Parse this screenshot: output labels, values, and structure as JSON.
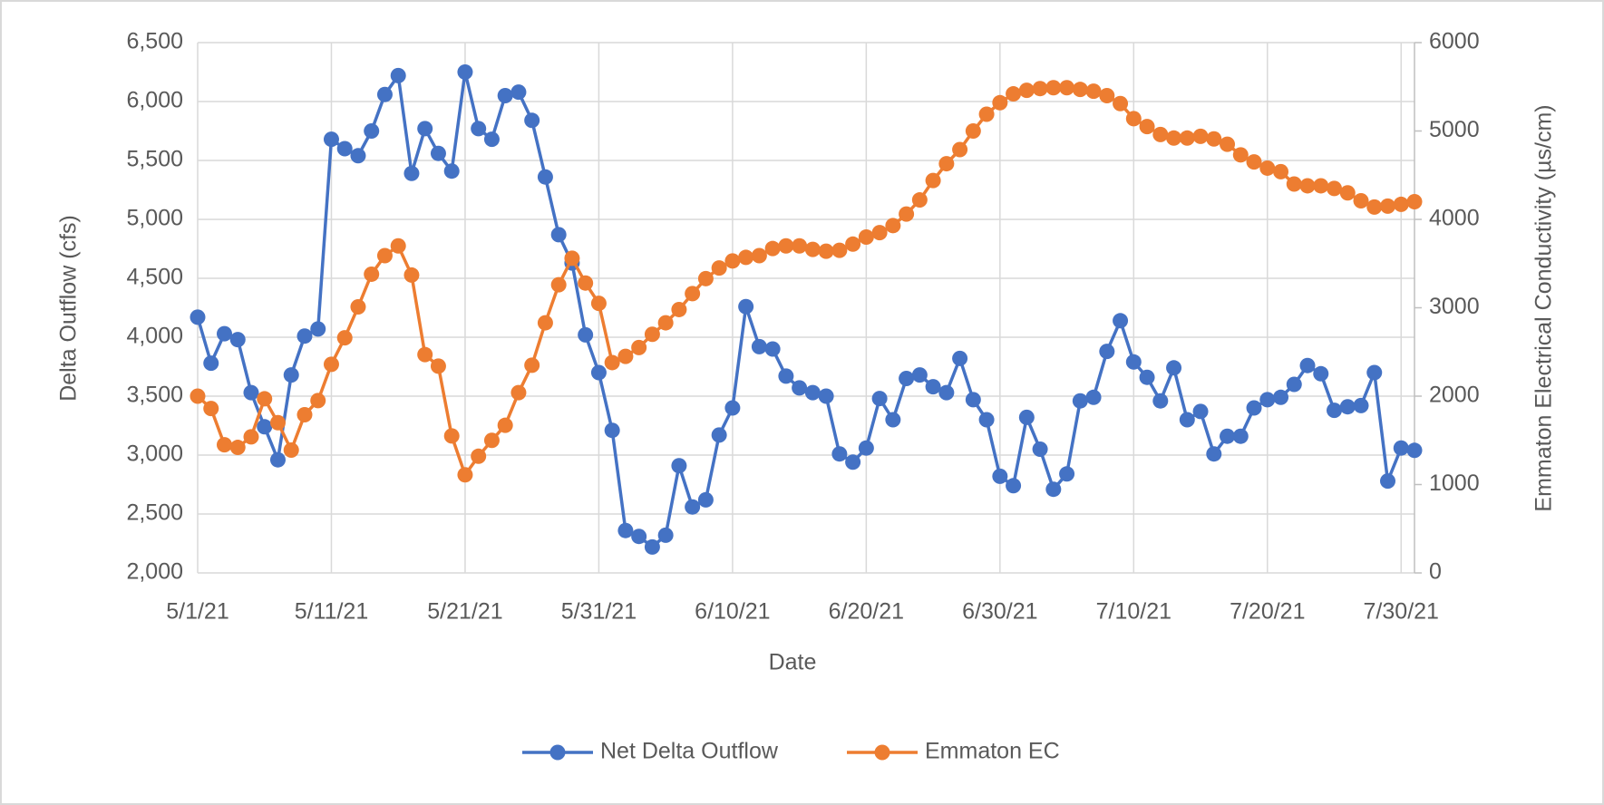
{
  "chart_data": {
    "type": "line",
    "x_label": "Date",
    "y_label": "Delta Outflow (cfs)",
    "y2_label": "Emmaton Electrical Conductivity (µs/cm)",
    "x": [
      "5/1/21",
      "5/2/21",
      "5/3/21",
      "5/4/21",
      "5/5/21",
      "5/6/21",
      "5/7/21",
      "5/8/21",
      "5/9/21",
      "5/10/21",
      "5/11/21",
      "5/12/21",
      "5/13/21",
      "5/14/21",
      "5/15/21",
      "5/16/21",
      "5/17/21",
      "5/18/21",
      "5/19/21",
      "5/20/21",
      "5/21/21",
      "5/22/21",
      "5/23/21",
      "5/24/21",
      "5/25/21",
      "5/26/21",
      "5/27/21",
      "5/28/21",
      "5/29/21",
      "5/30/21",
      "5/31/21",
      "6/1/21",
      "6/2/21",
      "6/3/21",
      "6/4/21",
      "6/5/21",
      "6/6/21",
      "6/7/21",
      "6/8/21",
      "6/9/21",
      "6/10/21",
      "6/11/21",
      "6/12/21",
      "6/13/21",
      "6/14/21",
      "6/15/21",
      "6/16/21",
      "6/17/21",
      "6/18/21",
      "6/19/21",
      "6/20/21",
      "6/21/21",
      "6/22/21",
      "6/23/21",
      "6/24/21",
      "6/25/21",
      "6/26/21",
      "6/27/21",
      "6/28/21",
      "6/29/21",
      "6/30/21",
      "7/1/21",
      "7/2/21",
      "7/3/21",
      "7/4/21",
      "7/5/21",
      "7/6/21",
      "7/7/21",
      "7/8/21",
      "7/9/21",
      "7/10/21",
      "7/11/21",
      "7/12/21",
      "7/13/21",
      "7/14/21",
      "7/15/21",
      "7/16/21",
      "7/17/21",
      "7/18/21",
      "7/19/21",
      "7/20/21",
      "7/21/21",
      "7/22/21",
      "7/23/21",
      "7/24/21",
      "7/25/21",
      "7/26/21",
      "7/27/21",
      "7/28/21",
      "7/29/21",
      "7/30/21",
      "7/31/21"
    ],
    "xlim": [
      "5/1/21",
      "7/31/21"
    ],
    "xticks": [
      "5/1/21",
      "5/11/21",
      "5/21/21",
      "5/31/21",
      "6/10/21",
      "6/20/21",
      "6/30/21",
      "7/10/21",
      "7/20/21",
      "7/30/21"
    ],
    "ylim": [
      2000,
      6500
    ],
    "yticks": [
      {
        "value": 2000,
        "label": "2,000"
      },
      {
        "value": 2500,
        "label": "2,500"
      },
      {
        "value": 3000,
        "label": "3,000"
      },
      {
        "value": 3500,
        "label": "3,500"
      },
      {
        "value": 4000,
        "label": "4,000"
      },
      {
        "value": 4500,
        "label": "4,500"
      },
      {
        "value": 5000,
        "label": "5,000"
      },
      {
        "value": 5500,
        "label": "5,500"
      },
      {
        "value": 6000,
        "label": "6,000"
      },
      {
        "value": 6500,
        "label": "6,500"
      }
    ],
    "y2lim": [
      0,
      6000
    ],
    "y2ticks": [
      0,
      1000,
      2000,
      3000,
      4000,
      5000,
      6000
    ],
    "grid": true,
    "legend": "bottom",
    "series": [
      {
        "name": "Net Delta Outflow",
        "color": "#4472c4",
        "values": [
          4170,
          3780,
          4030,
          3980,
          3530,
          3240,
          2960,
          3680,
          4010,
          4070,
          5680,
          5600,
          5540,
          5750,
          6060,
          6220,
          5390,
          5770,
          5560,
          5410,
          6250,
          5770,
          5680,
          6050,
          6080,
          5840,
          5360,
          4870,
          4630,
          4020,
          3700,
          3210,
          2360,
          2310,
          2220,
          2320,
          2910,
          2560,
          2620,
          3170,
          3400,
          4260,
          3920,
          3900,
          3670,
          3570,
          3530,
          3500,
          3010,
          2940,
          3060,
          3480,
          3300,
          3650,
          3680,
          3580,
          3530,
          3820,
          3470,
          3300,
          2820,
          2740,
          3320,
          3050,
          2710,
          2840,
          3460,
          3490,
          3880,
          4140,
          3790,
          3660,
          3460,
          3740,
          3300,
          3370,
          3010,
          3160,
          3160,
          3400,
          3470,
          3490,
          3600,
          3760,
          3690,
          3380,
          3410,
          3420,
          3700,
          2780,
          3060,
          3040
        ]
      },
      {
        "name": "Emmaton EC",
        "color": "#ed7d31",
        "axis": "y2",
        "values": [
          2000,
          1860,
          1450,
          1420,
          1540,
          1970,
          1700,
          1390,
          1790,
          1950,
          2360,
          2660,
          3010,
          3380,
          3590,
          3700,
          3370,
          2470,
          2340,
          1550,
          1110,
          1320,
          1500,
          1670,
          2040,
          2350,
          2830,
          3260,
          3560,
          3280,
          3050,
          2380,
          2450,
          2550,
          2700,
          2830,
          2980,
          3160,
          3330,
          3450,
          3530,
          3570,
          3590,
          3670,
          3700,
          3700,
          3660,
          3640,
          3650,
          3720,
          3800,
          3850,
          3930,
          4060,
          4220,
          4440,
          4630,
          4790,
          5000,
          5190,
          5320,
          5420,
          5460,
          5480,
          5490,
          5490,
          5470,
          5450,
          5400,
          5310,
          5140,
          5050,
          4960,
          4920,
          4920,
          4940,
          4910,
          4850,
          4730,
          4650,
          4580,
          4540,
          4400,
          4380,
          4380,
          4350,
          4300,
          4210,
          4140,
          4150,
          4170,
          4200
        ]
      }
    ]
  }
}
